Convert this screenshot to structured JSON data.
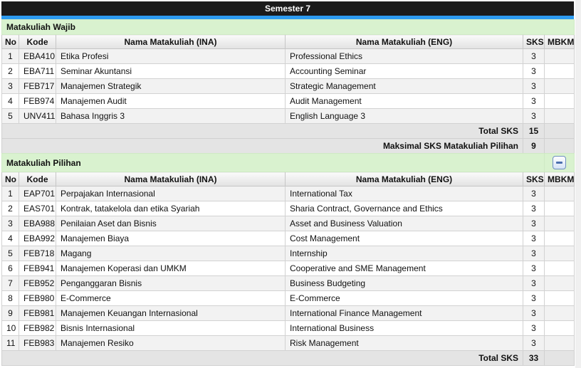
{
  "header": {
    "title": "Semester 7"
  },
  "colors": {
    "accent_blue": "#2d9bf0",
    "header_black": "#1b1b1b",
    "section_green": "#d9f2cf",
    "total_row_gray": "#e4e4e4",
    "stripe_gray": "#f2f2f2"
  },
  "sections": [
    {
      "title": "Matakuliah Wajib",
      "collapsible": false,
      "columns": [
        "No",
        "Kode",
        "Nama Matakuliah (INA)",
        "Nama Matakuliah (ENG)",
        "SKS",
        "MBKM"
      ],
      "rows": [
        {
          "no": "1",
          "kode": "EBA410",
          "ina": "Etika Profesi",
          "eng": "Professional Ethics",
          "sks": "3",
          "mbkm": ""
        },
        {
          "no": "2",
          "kode": "EBA711",
          "ina": "Seminar Akuntansi",
          "eng": "Accounting Seminar",
          "sks": "3",
          "mbkm": ""
        },
        {
          "no": "3",
          "kode": "FEB717",
          "ina": "Manajemen Strategik",
          "eng": "Strategic Management",
          "sks": "3",
          "mbkm": ""
        },
        {
          "no": "4",
          "kode": "FEB974",
          "ina": "Manajemen Audit",
          "eng": "Audit Management",
          "sks": "3",
          "mbkm": ""
        },
        {
          "no": "5",
          "kode": "UNV411",
          "ina": "Bahasa Inggris 3",
          "eng": "English Language 3",
          "sks": "3",
          "mbkm": ""
        }
      ],
      "footers": [
        {
          "label": "Total SKS",
          "value": "15"
        },
        {
          "label": "Maksimal SKS Matakuliah Pilihan",
          "value": "9"
        }
      ]
    },
    {
      "title": "Matakuliah Pilihan",
      "collapsible": true,
      "collapse_icon": "minus",
      "columns": [
        "No",
        "Kode",
        "Nama Matakuliah (INA)",
        "Nama Matakuliah (ENG)",
        "SKS",
        "MBKM"
      ],
      "rows": [
        {
          "no": "1",
          "kode": "EAP701",
          "ina": "Perpajakan Internasional",
          "eng": "International Tax",
          "sks": "3",
          "mbkm": ""
        },
        {
          "no": "2",
          "kode": "EAS701",
          "ina": "Kontrak, tatakelola dan etika Syariah",
          "eng": "Sharia Contract, Governance and Ethics",
          "sks": "3",
          "mbkm": ""
        },
        {
          "no": "3",
          "kode": "EBA988",
          "ina": "Penilaian Aset dan Bisnis",
          "eng": "Asset and Business Valuation",
          "sks": "3",
          "mbkm": ""
        },
        {
          "no": "4",
          "kode": "EBA992",
          "ina": "Manajemen Biaya",
          "eng": "Cost Management",
          "sks": "3",
          "mbkm": ""
        },
        {
          "no": "5",
          "kode": "FEB718",
          "ina": "Magang",
          "eng": "Internship",
          "sks": "3",
          "mbkm": ""
        },
        {
          "no": "6",
          "kode": "FEB941",
          "ina": "Manajemen Koperasi dan UMKM",
          "eng": "Cooperative and SME Management",
          "sks": "3",
          "mbkm": ""
        },
        {
          "no": "7",
          "kode": "FEB952",
          "ina": "Penganggaran Bisnis",
          "eng": "Business Budgeting",
          "sks": "3",
          "mbkm": ""
        },
        {
          "no": "8",
          "kode": "FEB980",
          "ina": "E-Commerce",
          "eng": "E-Commerce",
          "sks": "3",
          "mbkm": ""
        },
        {
          "no": "9",
          "kode": "FEB981",
          "ina": "Manajemen Keuangan Internasional",
          "eng": "International Finance Management",
          "sks": "3",
          "mbkm": ""
        },
        {
          "no": "10",
          "kode": "FEB982",
          "ina": "Bisnis Internasional",
          "eng": "International Business",
          "sks": "3",
          "mbkm": ""
        },
        {
          "no": "11",
          "kode": "FEB983",
          "ina": "Manajemen Resiko",
          "eng": "Risk Management",
          "sks": "3",
          "mbkm": ""
        }
      ],
      "footers": [
        {
          "label": "Total SKS",
          "value": "33"
        }
      ]
    }
  ]
}
